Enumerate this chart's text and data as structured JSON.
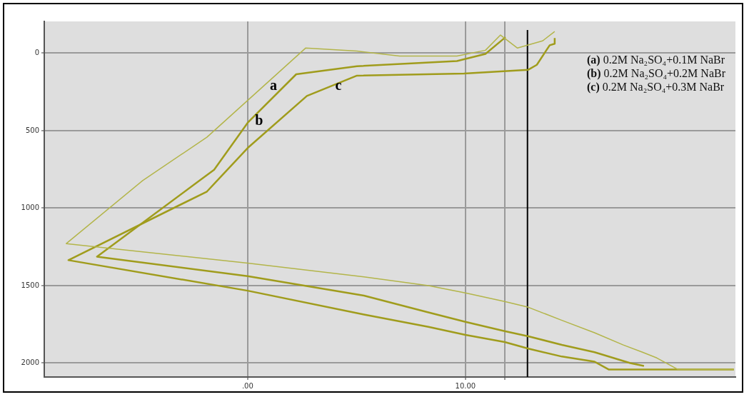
{
  "chart_data": {
    "type": "line",
    "series": [
      {
        "name": "(a) 0.2M Na₂SO₄+0.1M NaBr",
        "color": "#b3b54a",
        "x": [
          22.33,
          19.77,
          18.79,
          18.13,
          17.25,
          15.93,
          14.43,
          12.89,
          11.8,
          10.0,
          8.3,
          5.34,
          0,
          -8.33,
          -4.82,
          -1.87,
          2.66,
          5.02,
          6.98,
          9.61,
          10.92,
          11.61,
          12.39,
          13.54,
          14.1
        ],
        "values": [
          2042,
          2042,
          1967,
          1930,
          1883,
          1804,
          1724,
          1640,
          1603,
          1547,
          1500,
          1444,
          1355,
          1229,
          822,
          542,
          -33,
          -14,
          19,
          19,
          -19,
          -117,
          -33,
          -79,
          -140
        ]
      },
      {
        "name": "(b) 0.2M Na₂SO₄+0.2M NaBr",
        "color": "#a09c1c",
        "x": [
          18.2,
          17.57,
          15.93,
          14.43,
          12.89,
          11.8,
          10.0,
          8.3,
          5.34,
          0,
          -6.92,
          -1.54,
          0,
          2.23,
          5.02,
          9.61,
          10.92,
          11.84
        ],
        "values": [
          2019,
          2000,
          1930,
          1883,
          1827,
          1794,
          1734,
          1673,
          1565,
          1439,
          1313,
          752,
          449,
          136,
          84,
          51,
          5,
          -103
        ]
      },
      {
        "name": "(c) 0.2M Na₂SO₄+0.3M NaBr",
        "color": "#a09c1c",
        "x": [
          22.33,
          16.59,
          15.93,
          14.43,
          12.89,
          11.8,
          10.0,
          8.3,
          5.34,
          0,
          -8.23,
          -1.87,
          0,
          2.72,
          5.02,
          9.93,
          12.89,
          13.28,
          13.87,
          14.1,
          14.1
        ],
        "values": [
          2042,
          2042,
          1991,
          1958,
          1907,
          1864,
          1818,
          1766,
          1687,
          1533,
          1336,
          893,
          612,
          276,
          145,
          131,
          107,
          75,
          -51,
          -61,
          -98
        ]
      }
    ],
    "xlim": [
      -9.34,
      22.4
    ],
    "ylim": [
      2090,
      -205
    ],
    "xticks": [
      {
        "value": 0,
        "label": ".00"
      },
      {
        "value": 10,
        "label": "10.00"
      },
      {
        "value": 11.8,
        "label": null
      }
    ],
    "yticks": [
      0,
      500,
      1000,
      1500,
      2000
    ],
    "grid": true,
    "legend": "top right",
    "marker": "none",
    "line_style": "solid",
    "ref_lines": [
      {
        "axis": "x",
        "value": 12.85,
        "color": "#000000"
      }
    ],
    "annotations": [
      {
        "text": "a",
        "x": 0.66,
        "y": 221
      },
      {
        "text": "b",
        "x": 0,
        "y": 449
      },
      {
        "text": "c",
        "x": 3.64,
        "y": 224
      }
    ]
  }
}
